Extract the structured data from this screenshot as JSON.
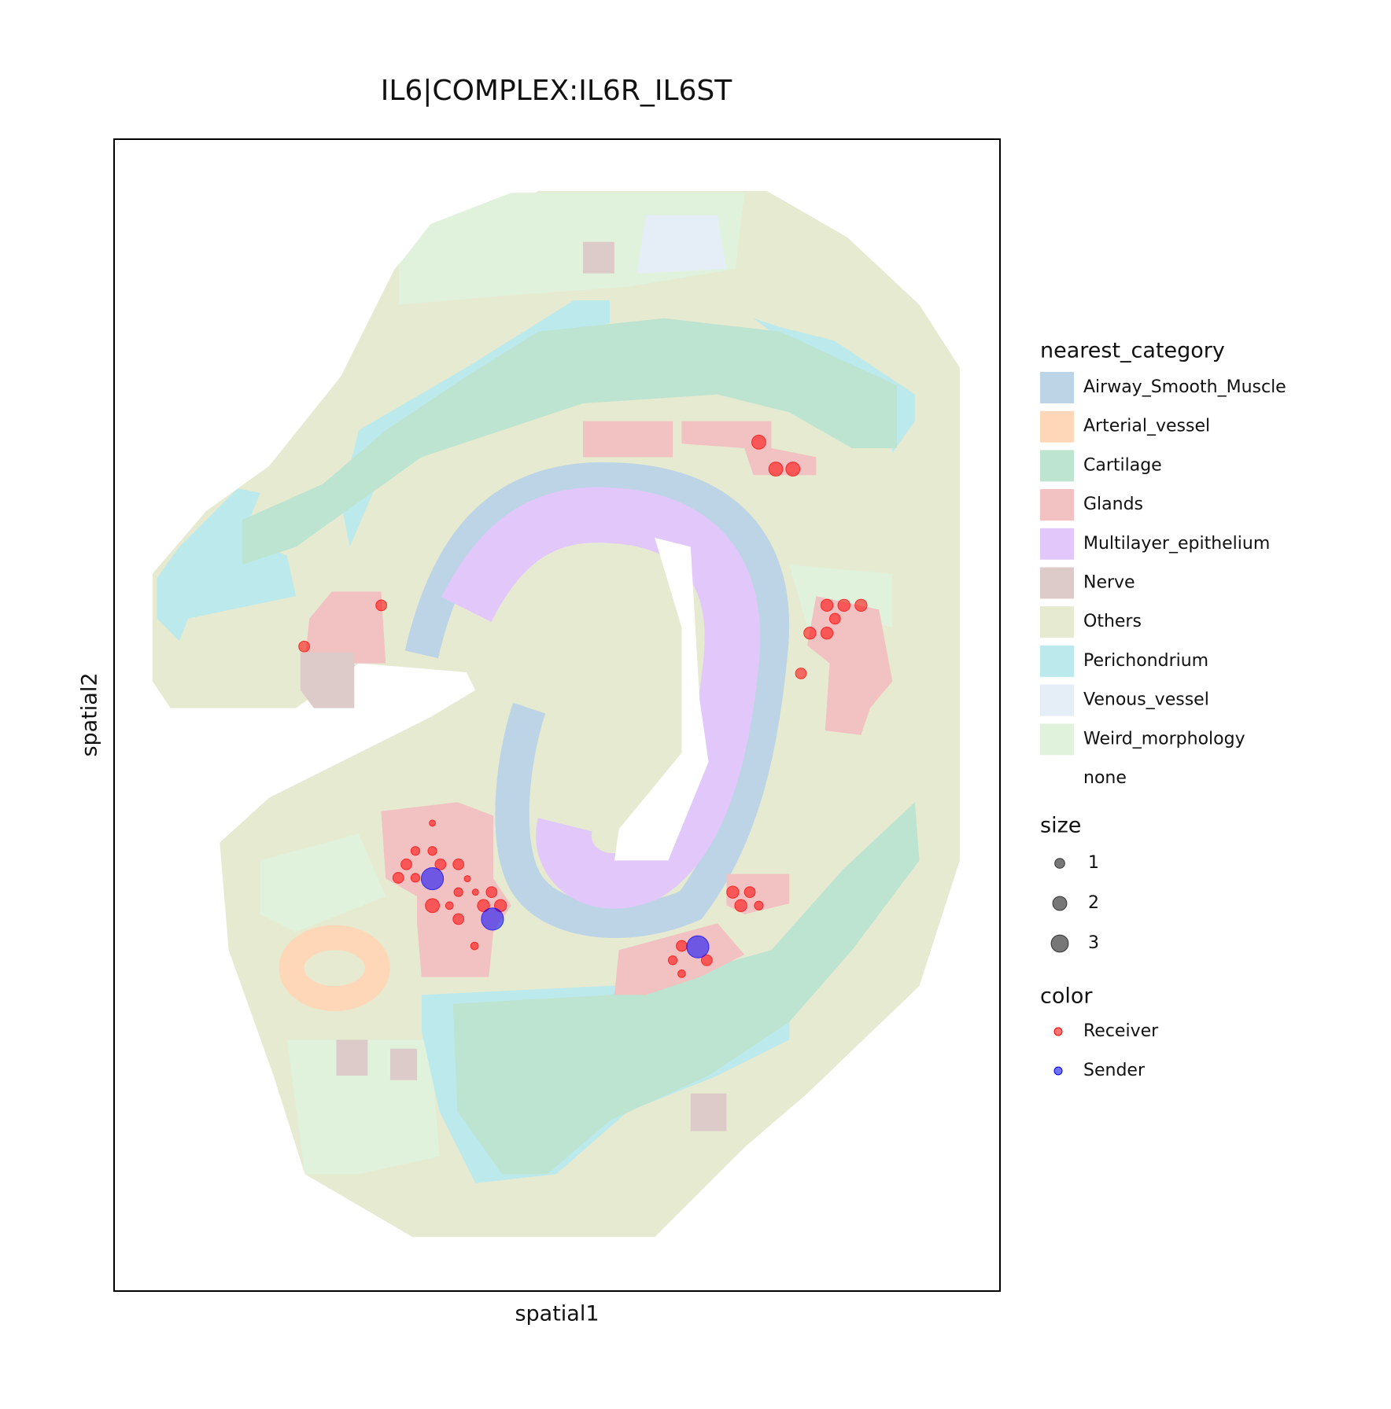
{
  "chart_data": {
    "type": "scatter",
    "title": "IL6|COMPLEX:IL6R_IL6ST",
    "xlabel": "spatial1",
    "ylabel": "spatial2",
    "xlim": [
      0,
      988
    ],
    "ylim": [
      1285,
      0
    ],
    "region_legend": {
      "title": "nearest_category",
      "categories": [
        {
          "name": "Airway_Smooth_Muscle",
          "color": "#bcd4e6"
        },
        {
          "name": "Arterial_vessel",
          "color": "#fed7b8"
        },
        {
          "name": "Cartilage",
          "color": "#bde3d1"
        },
        {
          "name": "Glands",
          "color": "#f2c1c1"
        },
        {
          "name": "Multilayer_epithelium",
          "color": "#e2c8fa"
        },
        {
          "name": "Nerve",
          "color": "#dccbc9"
        },
        {
          "name": "Others",
          "color": "#e5ead0"
        },
        {
          "name": "Perichondrium",
          "color": "#bce9ec"
        },
        {
          "name": "Venous_vessel",
          "color": "#e5edf6"
        },
        {
          "name": "Weird_morphology",
          "color": "#e0f2dc"
        },
        {
          "name": "none",
          "color": "#ffffff"
        }
      ]
    },
    "size_legend": {
      "title": "size",
      "values": [
        1,
        2,
        3
      ]
    },
    "color_legend_title": "color",
    "series": [
      {
        "name": "Receiver",
        "color": "#ff0000",
        "x": [
          719,
          738,
          757,
          298,
          212,
          795,
          814,
          833,
          804,
          776,
          795,
          766,
          355,
          336,
          355,
          326,
          364,
          384,
          317,
          336,
          403,
          384,
          421,
          394,
          355,
          374,
          412,
          431,
          384,
          402,
          690,
          709,
          699,
          719,
          633,
          623,
          661,
          633
        ],
        "y": [
          338,
          368,
          368,
          520,
          566,
          520,
          520,
          520,
          535,
          551,
          551,
          596,
          763,
          794,
          794,
          809,
          809,
          809,
          824,
          824,
          840,
          840,
          840,
          825,
          855,
          855,
          855,
          855,
          870,
          900,
          840,
          840,
          855,
          855,
          900,
          916,
          916,
          931
        ],
        "size": [
          2,
          2,
          2,
          1.2,
          1.2,
          1.5,
          1.5,
          1.5,
          1.2,
          1.5,
          1.5,
          1.2,
          0.4,
          0.8,
          0.8,
          1.2,
          1.2,
          1.2,
          1.2,
          0.8,
          0.4,
          0.8,
          1.2,
          0.4,
          2,
          0.6,
          1.5,
          1.5,
          1.2,
          0.6,
          1.5,
          1.2,
          1.5,
          0.8,
          1.2,
          0.8,
          1.2,
          0.6
        ]
      },
      {
        "name": "Sender",
        "color": "#0000ff",
        "x": [
          355,
          422,
          651
        ],
        "y": [
          825,
          870,
          901
        ],
        "size": [
          5,
          5,
          5
        ]
      }
    ]
  }
}
